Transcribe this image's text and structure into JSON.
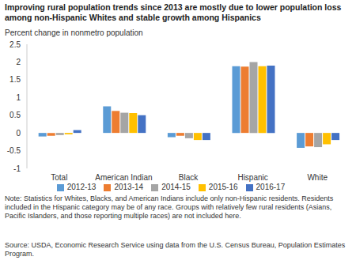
{
  "chart_data": {
    "type": "bar",
    "title": "Improving rural population trends since 2013 are mostly due to lower population loss among non-Hispanic Whites and stable growth among Hispanics",
    "y_label": "Percent change in nonmetro population",
    "categories": [
      "Total",
      "American Indian",
      "Black",
      "Hispanic",
      "White"
    ],
    "series": [
      {
        "name": "2012-13",
        "color": "#5b9bd5",
        "values": [
          -0.1,
          0.75,
          -0.12,
          1.88,
          -0.42
        ]
      },
      {
        "name": "2013-14",
        "color": "#ed7d31",
        "values": [
          -0.08,
          0.62,
          -0.08,
          1.87,
          -0.38
        ]
      },
      {
        "name": "2014-15",
        "color": "#a5a5a5",
        "values": [
          -0.06,
          0.57,
          -0.15,
          2.0,
          -0.4
        ]
      },
      {
        "name": "2015-16",
        "color": "#ffc000",
        "values": [
          -0.04,
          0.56,
          -0.2,
          1.88,
          -0.32
        ]
      },
      {
        "name": "2016-17",
        "color": "#4472c4",
        "values": [
          0.08,
          0.5,
          -0.2,
          1.9,
          -0.2
        ]
      }
    ],
    "ylim": [
      -1,
      2.5
    ],
    "yticks": [
      -1,
      -0.5,
      0,
      0.5,
      1,
      1.5,
      2,
      2.5
    ],
    "grid": false,
    "legend": "bottom",
    "note": "Note: Statistics for Whites, Blacks, and American Indians include only non-Hispanic residents. Residents included in the Hispanic category may be of any race. Groups with relatively few rural residents (Asians, Pacific Islanders, and those reporting multiple races) are not included here.",
    "source": "Source: USDA, Economic Research Service using data from the U.S. Census Bureau, Population Estimates Program."
  }
}
